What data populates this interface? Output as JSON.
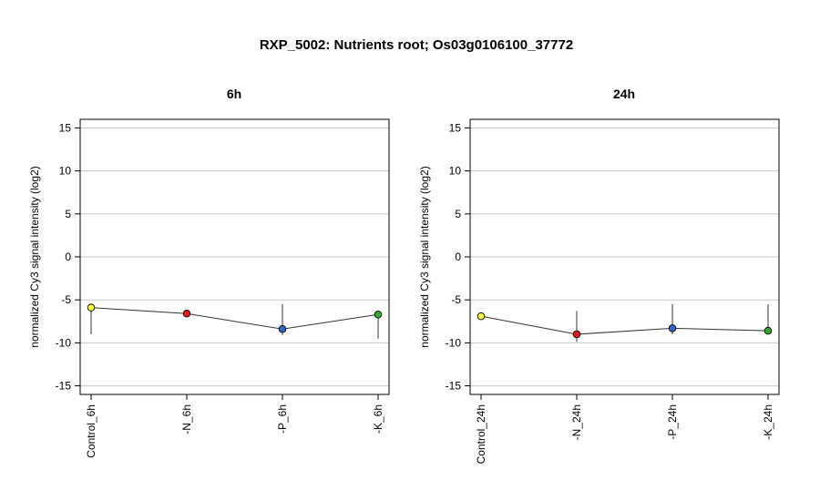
{
  "figure_title": "RXP_5002: Nutrients root; Os03g0106100_37772",
  "ylabel": "normalized Cy3 signal intensity (log2)",
  "colors": {
    "line": "#333333",
    "grid": "#c8c8c8",
    "frame": "#000000"
  },
  "chart_data": [
    {
      "type": "line",
      "title": "6h",
      "ylabel": "normalized Cy3 signal intensity (log2)",
      "ylim": [
        -16,
        16
      ],
      "yticks": [
        -15,
        -10,
        -5,
        0,
        5,
        10,
        15
      ],
      "grid": true,
      "categories": [
        "Control_6h",
        "-N_6h",
        "-P_6h",
        "-K_6h"
      ],
      "values": [
        -5.9,
        -6.6,
        -8.4,
        -6.7
      ],
      "error_low": [
        -9.0,
        -6.6,
        -9.1,
        -9.5
      ],
      "error_high": [
        -5.9,
        -6.6,
        -5.5,
        -6.7
      ],
      "point_colors": [
        "#ffff33",
        "#e41a1c",
        "#3366cc",
        "#33aa33"
      ]
    },
    {
      "type": "line",
      "title": "24h",
      "ylabel": "normalized Cy3 signal intensity (log2)",
      "ylim": [
        -16,
        16
      ],
      "yticks": [
        -15,
        -10,
        -5,
        0,
        5,
        10,
        15
      ],
      "grid": true,
      "categories": [
        "Control_24h",
        "-N_24h",
        "-P_24h",
        "-K_24h"
      ],
      "values": [
        -6.9,
        -9.0,
        -8.3,
        -8.6
      ],
      "error_low": [
        -7.3,
        -9.9,
        -9.0,
        -8.6
      ],
      "error_high": [
        -6.5,
        -6.3,
        -5.5,
        -5.5
      ],
      "point_colors": [
        "#ffff33",
        "#e41a1c",
        "#3366cc",
        "#33aa33"
      ]
    }
  ]
}
